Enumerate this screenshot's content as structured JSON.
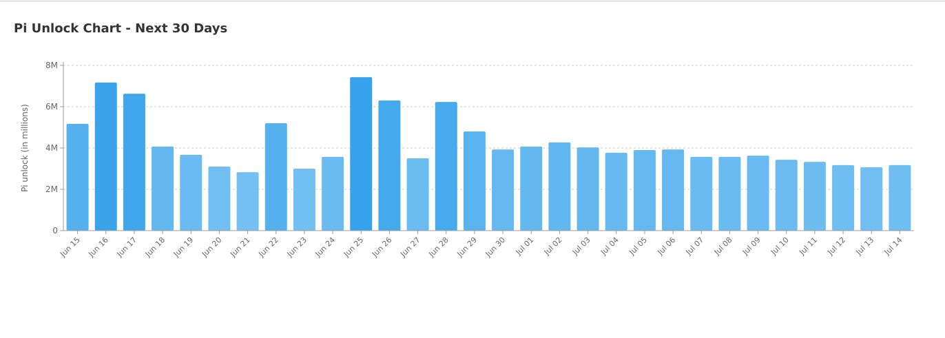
{
  "chart_data": {
    "type": "bar",
    "title": "Pi Unlock Chart - Next 30 Days",
    "y_label": "Pi unlock (in millions)",
    "categories": [
      "Jun 15",
      "Jun 16",
      "Jun 17",
      "Jun 18",
      "Jun 19",
      "Jun 20",
      "Jun 21",
      "Jun 22",
      "Jun 23",
      "Jun 24",
      "Jun 25",
      "Jun 26",
      "Jun 27",
      "Jun 28",
      "Jun 29",
      "Jun 30",
      "Jul 01",
      "Jul 02",
      "Jul 03",
      "Jul 04",
      "Jul 05",
      "Jul 06",
      "Jul 07",
      "Jul 08",
      "Jul 09",
      "Jul 10",
      "Jul 11",
      "Jul 12",
      "Jul 13",
      "Jul 14"
    ],
    "values": [
      5170000,
      7170000,
      6630000,
      4070000,
      3670000,
      3100000,
      2830000,
      5200000,
      3000000,
      3570000,
      7430000,
      6300000,
      3500000,
      6230000,
      4800000,
      3930000,
      4070000,
      4270000,
      4030000,
      3770000,
      3900000,
      3930000,
      3570000,
      3570000,
      3630000,
      3430000,
      3330000,
      3170000,
      3070000,
      3170000
    ],
    "color_light": "#74c0f2",
    "color_dark": "#36a2eb",
    "ylim": [
      0,
      8000000
    ],
    "yticks": [
      0,
      {
        "value": 2000000,
        "label": "2M"
      },
      {
        "value": 4000000,
        "label": "4M"
      },
      {
        "value": 6000000,
        "label": "6M"
      },
      {
        "value": 8000000,
        "label": "8M"
      }
    ],
    "grid": true
  }
}
